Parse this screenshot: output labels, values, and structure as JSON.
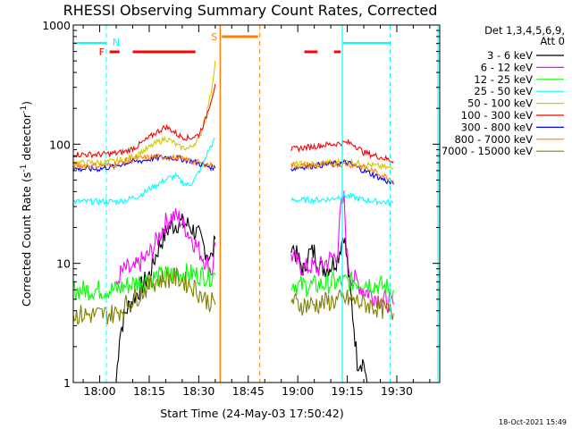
{
  "chart_data": {
    "type": "line",
    "title": "RHESSI Observing Summary Count Rates, Corrected",
    "xlabel": "Start Time (24-May-03 17:50:42)",
    "ylabel_main": "Corrected Count Rate (s",
    "ylabel_sup1": "-1",
    "ylabel_mid": " detector",
    "ylabel_sup2": "-1",
    "ylabel_end": ")",
    "y_scale": "log",
    "ylim": [
      1,
      1000
    ],
    "x_start": "17:50:42",
    "x_range_min": [
      -8,
      103
    ],
    "x_ticks": [
      {
        "label": "18:00",
        "min": 0
      },
      {
        "label": "18:15",
        "min": 15
      },
      {
        "label": "18:30",
        "min": 30
      },
      {
        "label": "18:45",
        "min": 45
      },
      {
        "label": "19:00",
        "min": 60
      },
      {
        "label": "19:15",
        "min": 75
      },
      {
        "label": "19:30",
        "min": 90
      }
    ],
    "y_ticks": [
      {
        "label": "1",
        "value": 1
      },
      {
        "label": "10",
        "value": 10
      },
      {
        "label": "100",
        "value": 100
      },
      {
        "label": "1000",
        "value": 1000
      }
    ],
    "legend_header": [
      "Det 1,3,4,5,6,9,",
      "Att 0"
    ],
    "legend_position": "right",
    "series": [
      {
        "name": "3 - 6 keV",
        "color": "#000000",
        "points": [
          [
            5,
            1
          ],
          [
            6,
            2.5
          ],
          [
            8,
            4
          ],
          [
            10,
            5
          ],
          [
            12,
            6
          ],
          [
            15,
            8
          ],
          [
            18,
            14
          ],
          [
            21,
            20
          ],
          [
            24,
            22
          ],
          [
            27,
            21
          ],
          [
            30,
            17
          ],
          [
            32,
            13
          ],
          [
            34,
            11
          ],
          [
            35,
            16
          ],
          [
            58,
            15
          ],
          [
            60,
            11
          ],
          [
            62,
            8.5
          ],
          [
            63,
            12
          ],
          [
            65,
            12.5
          ],
          [
            67,
            9
          ],
          [
            70,
            9.5
          ],
          [
            72,
            11
          ],
          [
            74,
            18
          ],
          [
            75,
            10
          ],
          [
            77,
            3
          ],
          [
            78,
            1.5
          ],
          [
            80,
            1.5
          ],
          [
            81,
            1
          ]
        ]
      },
      {
        "name": "6 - 12 keV",
        "color": "#ff00ff",
        "points": [
          [
            5,
            6
          ],
          [
            6,
            8
          ],
          [
            8,
            9
          ],
          [
            10,
            8.5
          ],
          [
            12,
            10
          ],
          [
            14,
            11
          ],
          [
            16,
            13
          ],
          [
            18,
            17
          ],
          [
            20,
            22
          ],
          [
            22,
            25
          ],
          [
            24,
            24
          ],
          [
            26,
            20
          ],
          [
            28,
            16
          ],
          [
            30,
            13
          ],
          [
            32,
            10.5
          ],
          [
            34,
            8.5
          ],
          [
            35,
            15
          ],
          [
            58,
            12
          ],
          [
            60,
            10
          ],
          [
            62,
            9
          ],
          [
            64,
            9.5
          ],
          [
            66,
            9
          ],
          [
            68,
            10
          ],
          [
            70,
            11
          ],
          [
            72,
            12
          ],
          [
            73,
            28
          ],
          [
            74,
            35
          ],
          [
            75,
            11
          ],
          [
            76,
            8
          ],
          [
            80,
            6
          ],
          [
            85,
            5
          ],
          [
            89,
            4.5
          ]
        ]
      },
      {
        "name": "12 - 25 keV",
        "color": "#00ff00",
        "points": [
          [
            -8,
            6
          ],
          [
            0,
            6
          ],
          [
            5,
            6
          ],
          [
            8,
            6.5
          ],
          [
            12,
            7
          ],
          [
            16,
            7.5
          ],
          [
            20,
            8
          ],
          [
            25,
            8.3
          ],
          [
            30,
            8
          ],
          [
            34,
            7.8
          ],
          [
            35,
            8
          ],
          [
            58,
            7
          ],
          [
            60,
            6.5
          ],
          [
            65,
            6.5
          ],
          [
            70,
            6.8
          ],
          [
            75,
            7
          ],
          [
            80,
            7
          ],
          [
            85,
            6.5
          ],
          [
            89,
            6
          ]
        ]
      },
      {
        "name": "25 - 50 keV",
        "color": "#00ffff",
        "points": [
          [
            -8,
            33
          ],
          [
            0,
            33
          ],
          [
            5,
            33
          ],
          [
            8,
            34
          ],
          [
            12,
            37
          ],
          [
            15,
            42
          ],
          [
            18,
            47
          ],
          [
            21,
            52
          ],
          [
            23,
            54
          ],
          [
            25,
            48
          ],
          [
            27,
            45
          ],
          [
            29,
            52
          ],
          [
            31,
            65
          ],
          [
            33,
            90
          ],
          [
            35,
            110
          ],
          [
            58,
            34
          ],
          [
            60,
            34
          ],
          [
            65,
            34
          ],
          [
            70,
            34.5
          ],
          [
            72,
            36
          ],
          [
            75,
            37
          ],
          [
            80,
            34
          ],
          [
            85,
            33
          ],
          [
            89,
            32
          ]
        ]
      },
      {
        "name": "50 - 100 keV",
        "color": "#cccc00",
        "points": [
          [
            -8,
            70
          ],
          [
            0,
            70
          ],
          [
            5,
            72
          ],
          [
            8,
            75
          ],
          [
            11,
            82
          ],
          [
            14,
            90
          ],
          [
            17,
            102
          ],
          [
            20,
            112
          ],
          [
            22,
            105
          ],
          [
            24,
            95
          ],
          [
            27,
            92
          ],
          [
            30,
            110
          ],
          [
            32,
            160
          ],
          [
            34,
            300
          ],
          [
            35,
            500
          ],
          [
            58,
            68
          ],
          [
            60,
            68
          ],
          [
            65,
            68
          ],
          [
            70,
            70
          ],
          [
            75,
            72
          ],
          [
            80,
            68
          ],
          [
            85,
            65
          ],
          [
            89,
            62
          ]
        ]
      },
      {
        "name": "100 - 300 keV",
        "color": "#ff0000",
        "points": [
          [
            -8,
            82
          ],
          [
            0,
            82
          ],
          [
            5,
            84
          ],
          [
            8,
            87
          ],
          [
            11,
            95
          ],
          [
            14,
            108
          ],
          [
            17,
            125
          ],
          [
            20,
            140
          ],
          [
            22,
            130
          ],
          [
            24,
            118
          ],
          [
            27,
            112
          ],
          [
            30,
            120
          ],
          [
            32,
            160
          ],
          [
            34,
            250
          ],
          [
            35,
            320
          ],
          [
            58,
            90
          ],
          [
            60,
            92
          ],
          [
            65,
            96
          ],
          [
            70,
            100
          ],
          [
            75,
            103
          ],
          [
            77,
            100
          ],
          [
            80,
            85
          ],
          [
            85,
            78
          ],
          [
            89,
            72
          ]
        ]
      },
      {
        "name": "300 - 800 keV",
        "color": "#0000ff",
        "points": [
          [
            -8,
            62
          ],
          [
            0,
            62
          ],
          [
            5,
            66
          ],
          [
            8,
            70
          ],
          [
            12,
            72
          ],
          [
            16,
            76
          ],
          [
            20,
            78
          ],
          [
            24,
            76
          ],
          [
            28,
            72
          ],
          [
            32,
            66
          ],
          [
            35,
            63
          ],
          [
            58,
            62
          ],
          [
            60,
            64
          ],
          [
            65,
            66
          ],
          [
            70,
            68
          ],
          [
            75,
            70
          ],
          [
            80,
            60
          ],
          [
            85,
            52
          ],
          [
            89,
            46
          ]
        ]
      },
      {
        "name": "800 - 7000 keV",
        "color": "#ff8000",
        "points": [
          [
            -8,
            66
          ],
          [
            0,
            66
          ],
          [
            5,
            68
          ],
          [
            8,
            72
          ],
          [
            12,
            76
          ],
          [
            16,
            78
          ],
          [
            20,
            78
          ],
          [
            24,
            76
          ],
          [
            28,
            72
          ],
          [
            32,
            68
          ],
          [
            35,
            66
          ],
          [
            58,
            66
          ],
          [
            60,
            66
          ],
          [
            65,
            66
          ],
          [
            70,
            68
          ],
          [
            75,
            68
          ],
          [
            80,
            64
          ],
          [
            85,
            56
          ],
          [
            89,
            50
          ]
        ]
      },
      {
        "name": "7000 - 15000 keV",
        "color": "#808000",
        "points": [
          [
            -8,
            3.7
          ],
          [
            0,
            3.7
          ],
          [
            5,
            3.8
          ],
          [
            8,
            4.5
          ],
          [
            12,
            5.5
          ],
          [
            16,
            7
          ],
          [
            20,
            7.5
          ],
          [
            24,
            7.5
          ],
          [
            28,
            6.5
          ],
          [
            32,
            5
          ],
          [
            35,
            4.5
          ],
          [
            58,
            5
          ],
          [
            60,
            4.5
          ],
          [
            65,
            4.5
          ],
          [
            70,
            4.8
          ],
          [
            75,
            5
          ],
          [
            80,
            4.6
          ],
          [
            85,
            4.2
          ],
          [
            89,
            3.8
          ]
        ]
      }
    ],
    "flags": [
      {
        "label": "N",
        "color": "#00ffff"
      },
      {
        "label": "F",
        "color": "#ff0000"
      },
      {
        "label": "S",
        "color": "#ff8000"
      }
    ],
    "timestamp": "18-Oct-2021 15:49"
  }
}
